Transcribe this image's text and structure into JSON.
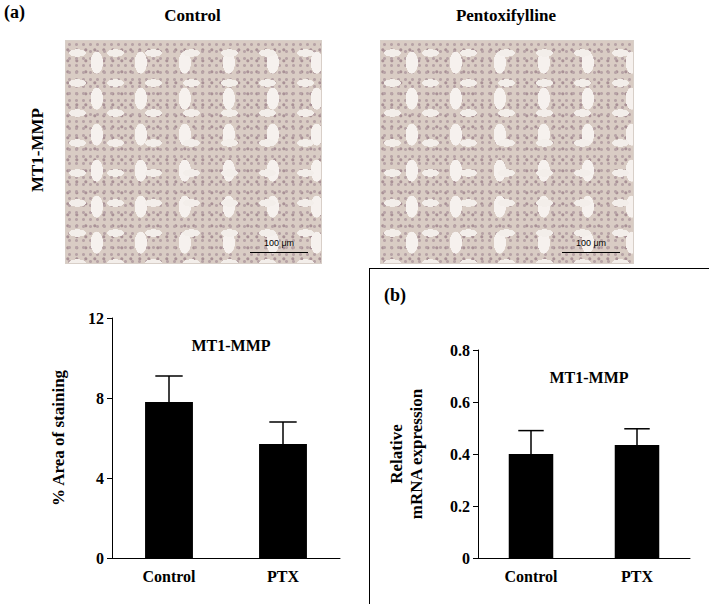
{
  "images": {
    "panel_label": "(a)",
    "row_label": "MT1-MMP",
    "titles": [
      "Control",
      "Pentoxifylline"
    ],
    "scale_bar": "100 μm"
  },
  "chart_data": [
    {
      "type": "bar",
      "title": "MT1-MMP",
      "y_label": "% Area of staining",
      "categories": [
        "Control",
        "PTX"
      ],
      "values": [
        7.8,
        5.7
      ],
      "errors": [
        1.3,
        1.1
      ],
      "color": "#000000",
      "ylim": [
        0,
        12
      ],
      "yticks": [
        0,
        4,
        8,
        12
      ],
      "grid": false
    },
    {
      "type": "bar",
      "title": "MT1-MMP",
      "y_label": "Relative\nmRNA expression",
      "annotations": [
        "(b)"
      ],
      "categories": [
        "Control",
        "PTX"
      ],
      "values": [
        0.4,
        0.435
      ],
      "errors": [
        0.09,
        0.062
      ],
      "color": "#000000",
      "ylim": [
        0,
        0.8
      ],
      "yticks": [
        0,
        0.2,
        0.4,
        0.6,
        0.8
      ],
      "grid": false
    }
  ]
}
